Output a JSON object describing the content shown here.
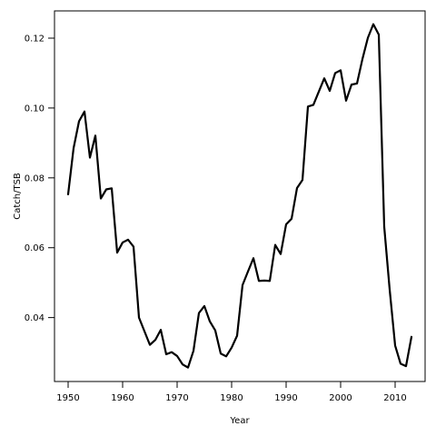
{
  "chart_data": {
    "type": "line",
    "title": "",
    "xlabel": "Year",
    "ylabel": "Catch/TSB",
    "xlim": [
      1947.5,
      2015.5
    ],
    "ylim": [
      0.0217,
      0.1278
    ],
    "xticks": [
      1950,
      1960,
      1970,
      1980,
      1990,
      2000,
      2010
    ],
    "yticks": [
      0.04,
      0.06,
      0.08,
      0.1,
      0.12
    ],
    "ytick_labels": [
      "0.04",
      "0.06",
      "0.08",
      "0.10",
      "0.12"
    ],
    "grid": false,
    "legend": "none",
    "line_color": "#000000",
    "series": [
      {
        "x": [
          1950,
          1951,
          1952,
          1953,
          1954,
          1955,
          1956,
          1957,
          1958,
          1959,
          1960,
          1961,
          1962,
          1963,
          1964,
          1965,
          1966,
          1967,
          1968,
          1969,
          1970,
          1971,
          1972,
          1973,
          1974,
          1975,
          1976,
          1977,
          1978,
          1979,
          1980,
          1981,
          1982,
          1983,
          1984,
          1985,
          1986,
          1987,
          1988,
          1989,
          1990,
          1991,
          1992,
          1993,
          1994,
          1995,
          1996,
          1997,
          1998,
          1999,
          2000,
          2001,
          2002,
          2003,
          2004,
          2005,
          2006,
          2007,
          2008,
          2009,
          2010,
          2011,
          2012,
          2013
        ],
        "y": [
          0.0753,
          0.0885,
          0.0962,
          0.099,
          0.0858,
          0.0921,
          0.0741,
          0.0767,
          0.077,
          0.0586,
          0.0615,
          0.0623,
          0.0603,
          0.04,
          0.0361,
          0.0322,
          0.0336,
          0.0365,
          0.0295,
          0.0301,
          0.029,
          0.0266,
          0.0257,
          0.0305,
          0.0413,
          0.0433,
          0.0389,
          0.0363,
          0.0297,
          0.0289,
          0.0314,
          0.0348,
          0.0493,
          0.0532,
          0.057,
          0.0505,
          0.0506,
          0.0505,
          0.0608,
          0.0582,
          0.0667,
          0.0683,
          0.0771,
          0.0794,
          0.1004,
          0.1009,
          0.1047,
          0.1085,
          0.1049,
          0.11,
          0.1108,
          0.1021,
          0.1067,
          0.107,
          0.114,
          0.1201,
          0.124,
          0.121,
          0.066,
          0.048,
          0.032,
          0.0268,
          0.0261,
          0.0345
        ]
      }
    ]
  }
}
